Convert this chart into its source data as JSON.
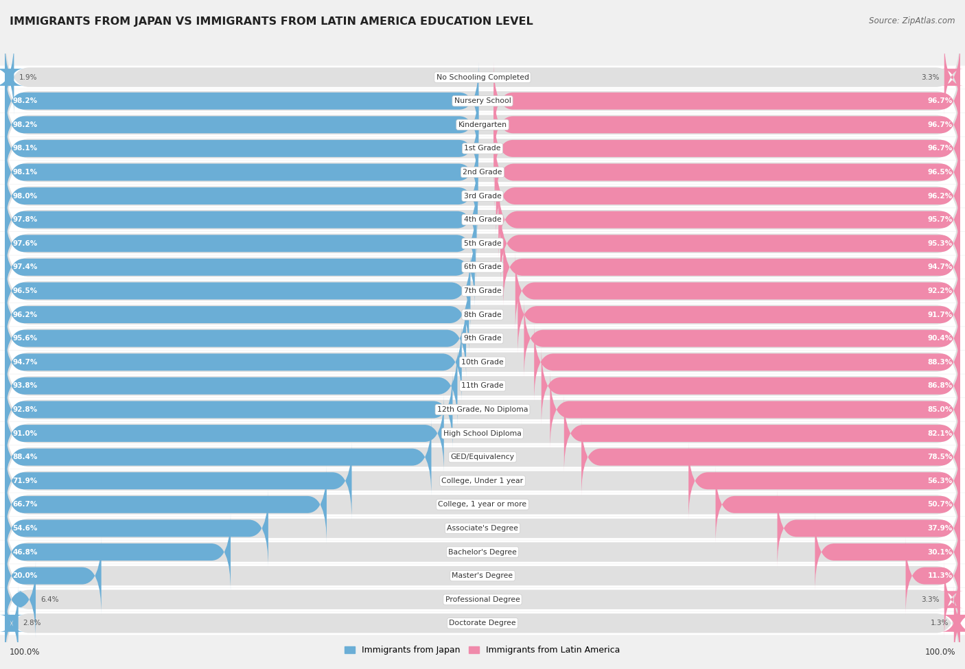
{
  "title": "IMMIGRANTS FROM JAPAN VS IMMIGRANTS FROM LATIN AMERICA EDUCATION LEVEL",
  "source": "Source: ZipAtlas.com",
  "categories": [
    "No Schooling Completed",
    "Nursery School",
    "Kindergarten",
    "1st Grade",
    "2nd Grade",
    "3rd Grade",
    "4th Grade",
    "5th Grade",
    "6th Grade",
    "7th Grade",
    "8th Grade",
    "9th Grade",
    "10th Grade",
    "11th Grade",
    "12th Grade, No Diploma",
    "High School Diploma",
    "GED/Equivalency",
    "College, Under 1 year",
    "College, 1 year or more",
    "Associate's Degree",
    "Bachelor's Degree",
    "Master's Degree",
    "Professional Degree",
    "Doctorate Degree"
  ],
  "japan_values": [
    1.9,
    98.2,
    98.2,
    98.1,
    98.1,
    98.0,
    97.8,
    97.6,
    97.4,
    96.5,
    96.2,
    95.6,
    94.7,
    93.8,
    92.8,
    91.0,
    88.4,
    71.9,
    66.7,
    54.6,
    46.8,
    20.0,
    6.4,
    2.8
  ],
  "latin_values": [
    3.3,
    96.7,
    96.7,
    96.7,
    96.5,
    96.2,
    95.7,
    95.3,
    94.7,
    92.2,
    91.7,
    90.4,
    88.3,
    86.8,
    85.0,
    82.1,
    78.5,
    56.3,
    50.7,
    37.9,
    30.1,
    11.3,
    3.3,
    1.3
  ],
  "japan_color": "#6baed6",
  "latin_color": "#f08aab",
  "background_color": "#f0f0f0",
  "row_bg_color": "#e0e0e0",
  "legend_japan": "Immigrants from Japan",
  "legend_latin": "Immigrants from Latin America",
  "left_label": "100.0%",
  "right_label": "100.0%"
}
